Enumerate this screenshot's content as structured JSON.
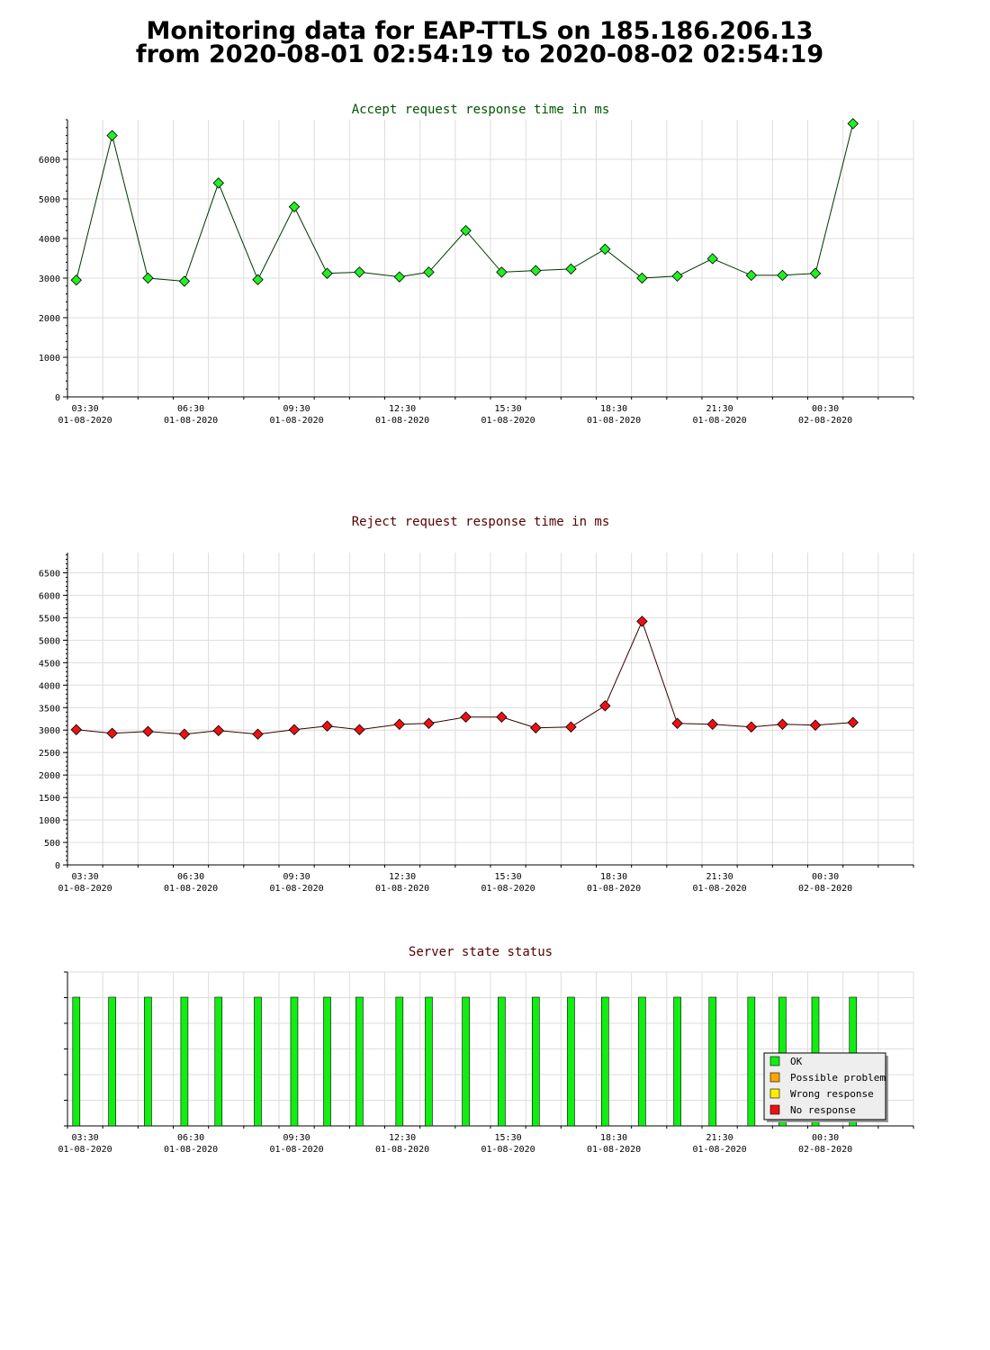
{
  "page": {
    "title_line1": "Monitoring data for EAP-TTLS on 185.186.206.13",
    "title_line2": "from 2020-08-01 02:54:19 to 2020-08-02 02:54:19"
  },
  "colors": {
    "accept_line": "#003300",
    "accept_marker": "#22ee22",
    "accept_title": "#005500",
    "reject_line": "#330000",
    "reject_marker": "#ee1111",
    "reject_title": "#550000",
    "status_title": "#550000",
    "ok": "#11ee11",
    "possible_problem": "#ffa500",
    "wrong_response": "#ffee00",
    "no_response": "#ee1111",
    "grid": "#dddddd"
  },
  "chart_data": [
    {
      "id": "accept",
      "type": "line",
      "title": "Accept request response time in ms",
      "x_tick_labels": [
        [
          "03:30",
          "01-08-2020"
        ],
        [
          "06:30",
          "01-08-2020"
        ],
        [
          "09:30",
          "01-08-2020"
        ],
        [
          "12:30",
          "01-08-2020"
        ],
        [
          "15:30",
          "01-08-2020"
        ],
        [
          "18:30",
          "01-08-2020"
        ],
        [
          "21:30",
          "01-08-2020"
        ],
        [
          "00:30",
          "02-08-2020"
        ]
      ],
      "y_ticks": [
        0,
        1000,
        2000,
        3000,
        4000,
        5000,
        6000
      ],
      "ylim": [
        0,
        7000
      ],
      "grid": true,
      "x": [
        "03:15",
        "04:16",
        "05:17",
        "06:19",
        "07:17",
        "08:24",
        "09:26",
        "10:22",
        "11:17",
        "12:25",
        "13:15",
        "14:18",
        "15:19",
        "16:17",
        "17:17",
        "18:15",
        "19:18",
        "20:18",
        "21:18",
        "22:24",
        "23:17",
        "00:13",
        "01:17"
      ],
      "series": [
        {
          "values": [
            2950,
            6600,
            3000,
            2920,
            5400,
            2960,
            4800,
            3120,
            3150,
            3030,
            3150,
            4200,
            3150,
            3190,
            3230,
            3730,
            3000,
            3050,
            3490,
            3070,
            3070,
            3120,
            6900
          ]
        }
      ]
    },
    {
      "id": "reject",
      "type": "line",
      "title": "Reject request response time in ms",
      "x_tick_labels": [
        [
          "03:30",
          "01-08-2020"
        ],
        [
          "06:30",
          "01-08-2020"
        ],
        [
          "09:30",
          "01-08-2020"
        ],
        [
          "12:30",
          "01-08-2020"
        ],
        [
          "15:30",
          "01-08-2020"
        ],
        [
          "18:30",
          "01-08-2020"
        ],
        [
          "21:30",
          "01-08-2020"
        ],
        [
          "00:30",
          "02-08-2020"
        ]
      ],
      "y_ticks": [
        0,
        500,
        1000,
        1500,
        2000,
        2500,
        3000,
        3500,
        4000,
        4500,
        5000,
        5500,
        6000,
        6500
      ],
      "ylim": [
        0,
        6950
      ],
      "grid": true,
      "x": [
        "03:15",
        "04:16",
        "05:17",
        "06:19",
        "07:17",
        "08:24",
        "09:26",
        "10:22",
        "11:17",
        "12:25",
        "13:15",
        "14:18",
        "15:19",
        "16:17",
        "17:17",
        "18:15",
        "19:18",
        "20:18",
        "21:18",
        "22:24",
        "23:17",
        "00:13",
        "01:17"
      ],
      "series": [
        {
          "values": [
            3010,
            2930,
            2970,
            2910,
            2990,
            2910,
            3010,
            3090,
            3010,
            3130,
            3150,
            3290,
            3290,
            3050,
            3070,
            3540,
            5420,
            3150,
            3130,
            3070,
            3130,
            3110,
            3170
          ]
        }
      ]
    },
    {
      "id": "status",
      "type": "bar",
      "title": "Server state status",
      "x_tick_labels": [
        [
          "03:30",
          "01-08-2020"
        ],
        [
          "06:30",
          "01-08-2020"
        ],
        [
          "09:30",
          "01-08-2020"
        ],
        [
          "12:30",
          "01-08-2020"
        ],
        [
          "15:30",
          "01-08-2020"
        ],
        [
          "18:30",
          "01-08-2020"
        ],
        [
          "21:30",
          "01-08-2020"
        ],
        [
          "00:30",
          "02-08-2020"
        ]
      ],
      "x": [
        "03:15",
        "04:16",
        "05:17",
        "06:19",
        "07:17",
        "08:24",
        "09:26",
        "10:22",
        "11:17",
        "12:25",
        "13:15",
        "14:18",
        "15:19",
        "16:17",
        "17:17",
        "18:15",
        "19:18",
        "20:18",
        "21:18",
        "22:24",
        "23:17",
        "00:13",
        "01:17"
      ],
      "values": [
        "OK",
        "OK",
        "OK",
        "OK",
        "OK",
        "OK",
        "OK",
        "OK",
        "OK",
        "OK",
        "OK",
        "OK",
        "OK",
        "OK",
        "OK",
        "OK",
        "OK",
        "OK",
        "OK",
        "OK",
        "OK",
        "OK",
        "OK"
      ],
      "legend_position": "bottom-right",
      "legend": [
        "OK",
        "Possible problem",
        "Wrong response",
        "No response"
      ]
    }
  ]
}
